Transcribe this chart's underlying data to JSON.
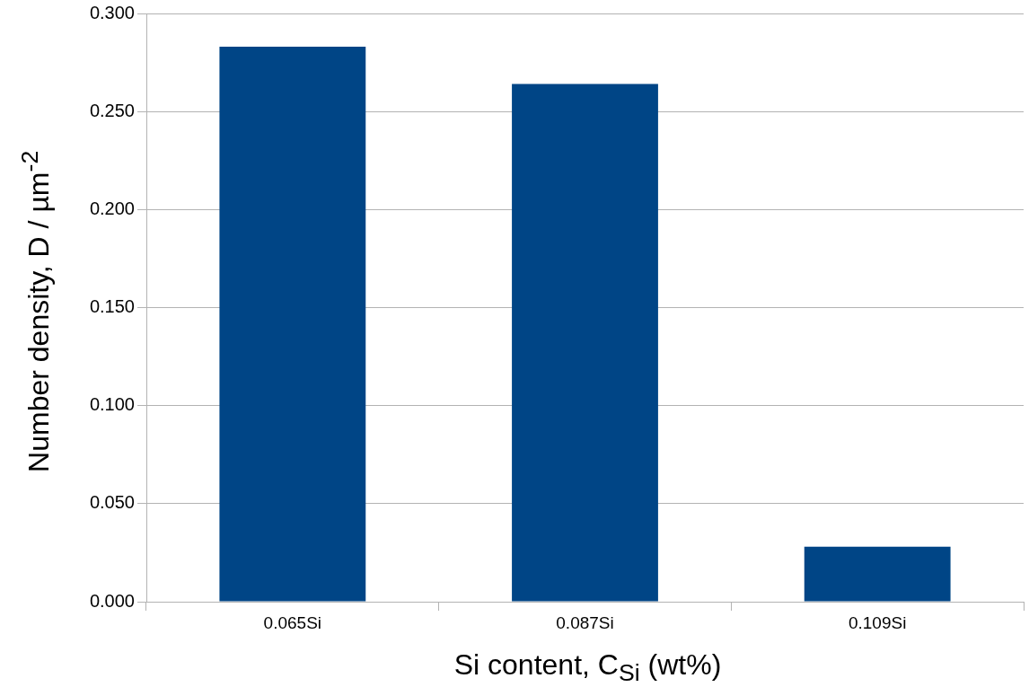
{
  "chart_data": {
    "type": "bar",
    "xlabel": "Si content, C$_{Si}$ (wt%)",
    "ylabel": "Number density, D / µm$^{-2}$",
    "categories": [
      "0.065Si",
      "0.087Si",
      "0.109Si"
    ],
    "values": [
      0.283,
      0.264,
      0.028
    ],
    "color": "#004586",
    "ylim": [
      0,
      0.3
    ],
    "yticks": [
      {
        "value": 0,
        "label": "0.000"
      },
      {
        "value": 0.05,
        "label": "0.050"
      },
      {
        "value": 0.1,
        "label": "0.100"
      },
      {
        "value": 0.15,
        "label": "0.150"
      },
      {
        "value": 0.2,
        "label": "0.200"
      },
      {
        "value": 0.25,
        "label": "0.250"
      },
      {
        "value": 0.3,
        "label": "0.300"
      }
    ],
    "grid": "y",
    "legend": false
  }
}
